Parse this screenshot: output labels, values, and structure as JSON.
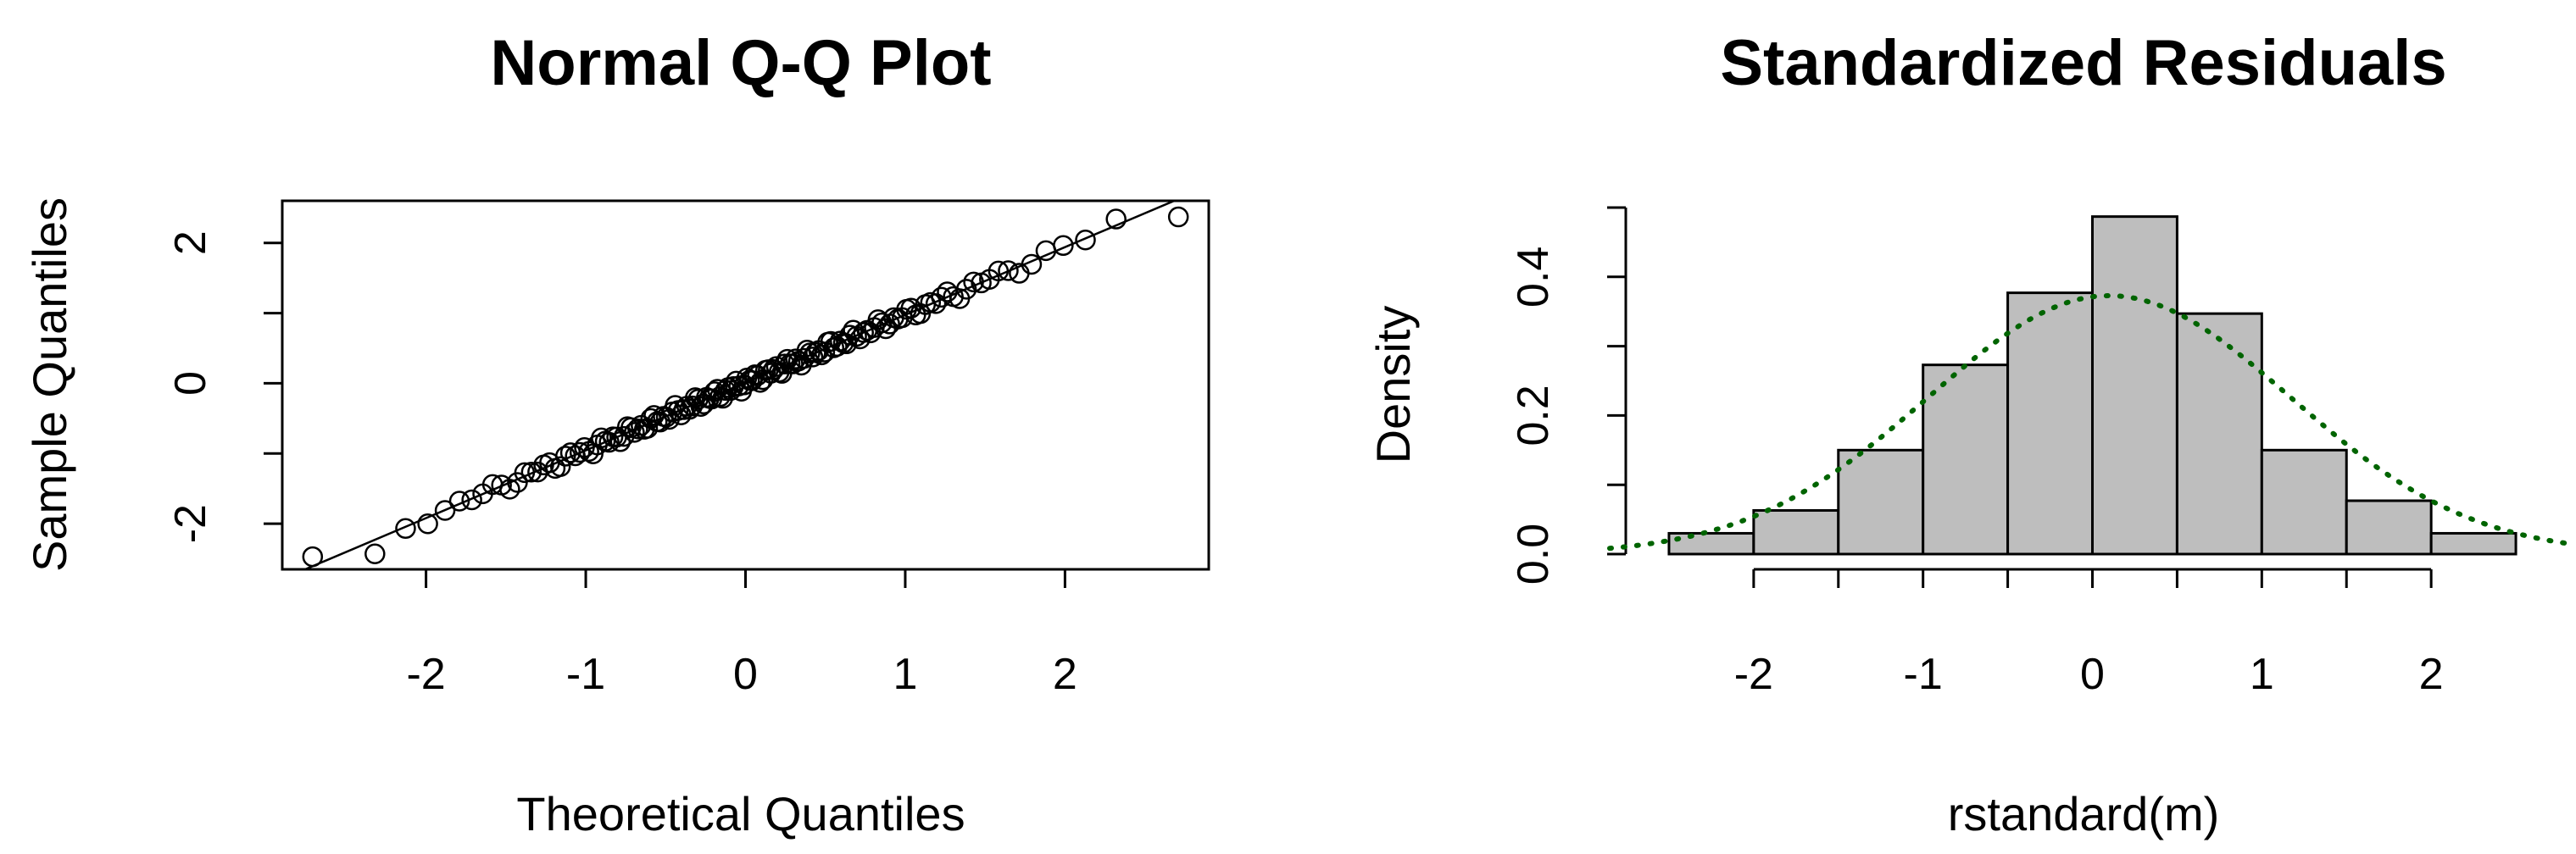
{
  "chart_data": [
    {
      "type": "scatter",
      "title": "Normal Q-Q Plot",
      "xlabel": "Theoretical Quantiles",
      "ylabel": "Sample Quantiles",
      "xlim": [
        -2.9,
        2.9
      ],
      "ylim": [
        -2.65,
        2.6
      ],
      "xticks": [
        -2,
        -1,
        0,
        1,
        2
      ],
      "yticks": [
        -2,
        0,
        2
      ],
      "reference_line": {
        "slope": 0.965,
        "intercept": 0.01
      },
      "grid": false,
      "legend": "none",
      "n_points": 150,
      "notable_points": [
        {
          "x": -2.71,
          "y": -2.47
        },
        {
          "x": -2.32,
          "y": -2.43
        },
        {
          "x": 2.32,
          "y": 2.34
        },
        {
          "x": 2.71,
          "y": 2.37
        }
      ]
    },
    {
      "type": "bar",
      "title": "Standardized Residuals",
      "xlabel": "rstandard(m)",
      "ylabel": "Density",
      "bin_edges": [
        -2.5,
        -2,
        -1.5,
        -1,
        -0.5,
        0,
        0.5,
        1,
        1.5,
        2,
        2.5
      ],
      "values": [
        0.03,
        0.063,
        0.15,
        0.273,
        0.377,
        0.487,
        0.347,
        0.15,
        0.077,
        0.03
      ],
      "bar_color": "#bebebe",
      "xlim": [
        -2.75,
        2.75
      ],
      "ylim": [
        0,
        0.5
      ],
      "xticks": [
        -2,
        -1,
        0,
        1,
        2
      ],
      "yticks": [
        0.0,
        0.1,
        0.2,
        0.3,
        0.4,
        0.5
      ],
      "ytick_labels": [
        "0.0",
        "",
        "0.2",
        "",
        "0.4",
        ""
      ],
      "density_curve": {
        "mean": 0.1,
        "sd": 1.07,
        "color": "#006400",
        "style": "dotted"
      },
      "grid": false,
      "legend": "none"
    }
  ]
}
